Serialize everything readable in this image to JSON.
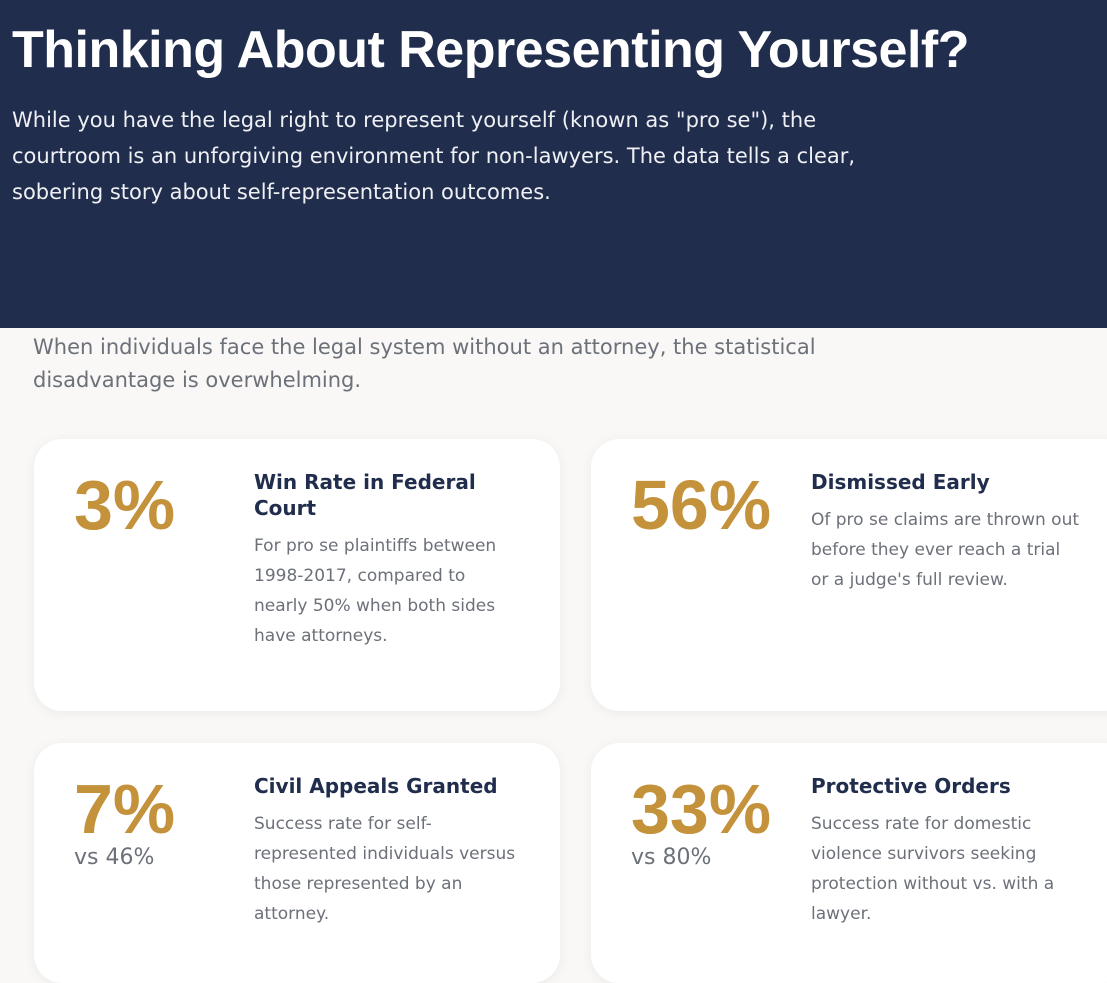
{
  "header": {
    "title": "Thinking About Representing Yourself?",
    "intro": "While you have the legal right to represent yourself (known as \"pro se\"), the courtroom is an unforgiving environment for non-lawyers. The data tells a clear, sobering story about self-representation outcomes."
  },
  "section": {
    "lead": "When individuals face the legal system without an attorney, the statistical disadvantage is overwhelming.",
    "cards": [
      {
        "stat": "3%",
        "title": "Win Rate in Federal Court",
        "description": "For pro se plaintiffs between 1998-2017, compared to nearly 50% when both sides have attorneys."
      },
      {
        "stat": "56%",
        "title": "Dismissed Early",
        "description": "Of pro se claims are thrown out before they ever reach a trial or a judge's full review."
      },
      {
        "stat": "7%",
        "comparison": "vs 46%",
        "title": "Civil Appeals Granted",
        "description": "Success rate for self-represented individuals versus those represented by an attorney."
      },
      {
        "stat": "33%",
        "comparison": "vs 80%",
        "title": "Protective Orders",
        "description": "Success rate for domestic violence survivors seeking protection without vs. with a lawyer."
      }
    ]
  }
}
